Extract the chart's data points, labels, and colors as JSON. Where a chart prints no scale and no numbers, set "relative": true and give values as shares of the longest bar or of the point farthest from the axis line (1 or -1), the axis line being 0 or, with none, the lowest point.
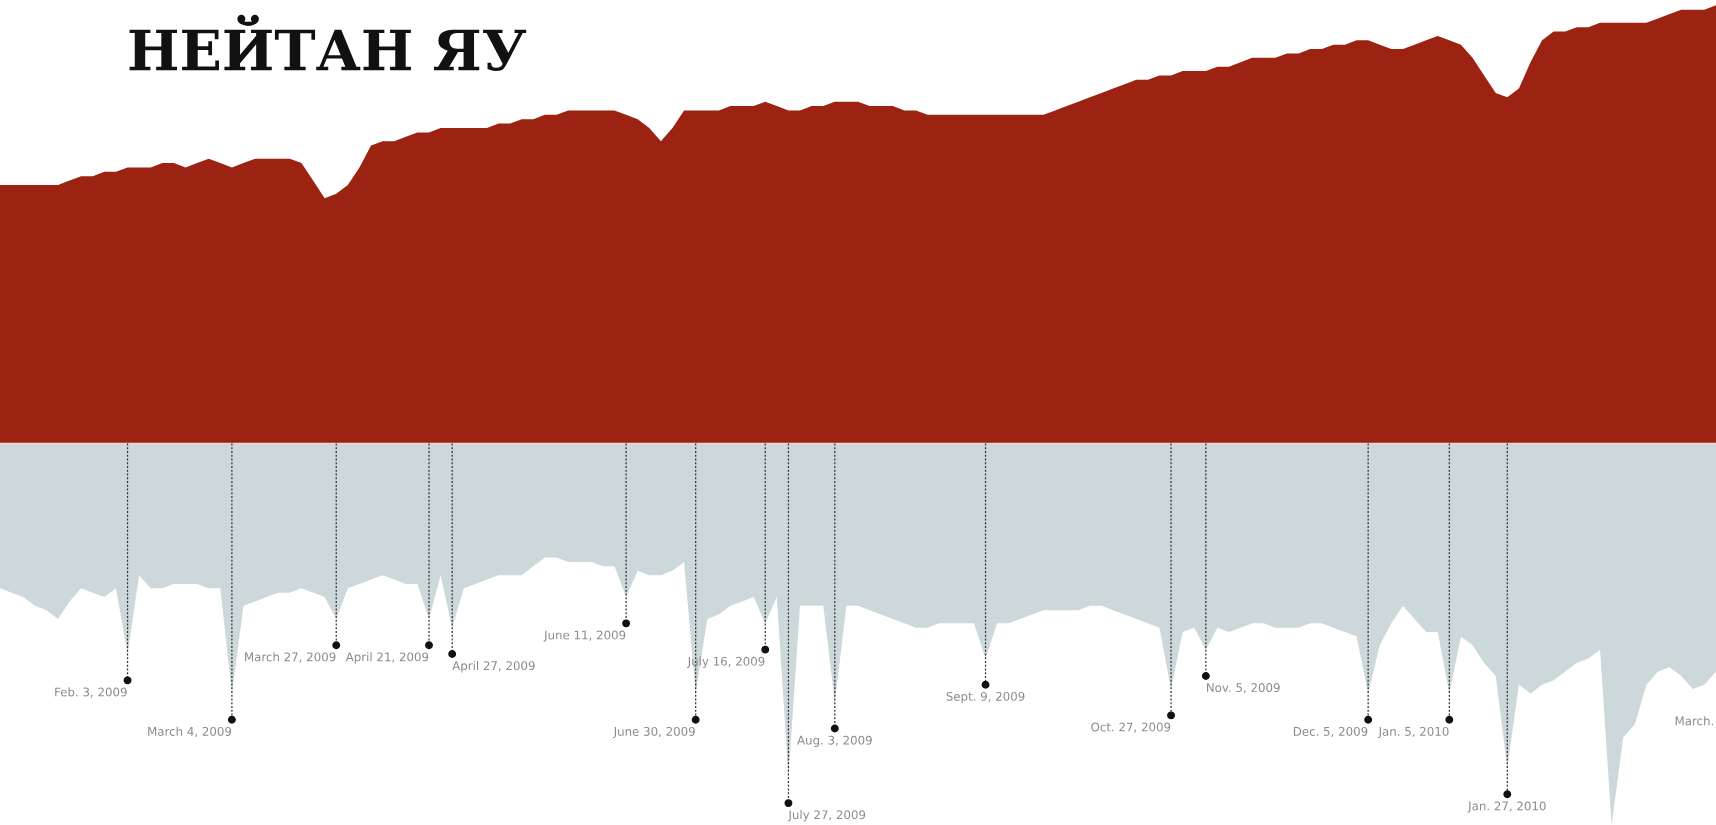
{
  "chart_data": {
    "type": "area",
    "title": "НЕЙТАН ЯУ",
    "relative": true,
    "categories": [
      null,
      null,
      null,
      null,
      null,
      null,
      null,
      null,
      null,
      null,
      null,
      null,
      null,
      null,
      null,
      null,
      null,
      null,
      null,
      null,
      null,
      null,
      null,
      null,
      null,
      null,
      null,
      null,
      null,
      null,
      null,
      null,
      null,
      null,
      null,
      null,
      null,
      null,
      null,
      null,
      null,
      null,
      null,
      null,
      null,
      null,
      null,
      null,
      null,
      null,
      null,
      null,
      null,
      null,
      null,
      null,
      null,
      null,
      null,
      null,
      null,
      null,
      null,
      null,
      null,
      null,
      null,
      null,
      null,
      null,
      null,
      null,
      null,
      null,
      null,
      null,
      null,
      null,
      null,
      null,
      null,
      null,
      null,
      null,
      null,
      null,
      null,
      null,
      null,
      null,
      null,
      null,
      null,
      null,
      null,
      null,
      null,
      null,
      null,
      null,
      null,
      null,
      null,
      null,
      null,
      null,
      null,
      null,
      null,
      null,
      null,
      null,
      null,
      null,
      null,
      null,
      null,
      null,
      null,
      null,
      null,
      null,
      null,
      null,
      null,
      null,
      null,
      null,
      null,
      null,
      null,
      null,
      null,
      null,
      null,
      null,
      null,
      null,
      null,
      null,
      null,
      null,
      null,
      null,
      null,
      null,
      null,
      null,
      null
    ],
    "series": [
      {
        "color": "#9c2212",
        "values": [
          0.59,
          0.59,
          0.59,
          0.59,
          0.59,
          0.59,
          0.6,
          0.61,
          0.61,
          0.62,
          0.62,
          0.63,
          0.63,
          0.63,
          0.64,
          0.64,
          0.63,
          0.64,
          0.65,
          0.64,
          0.63,
          0.64,
          0.65,
          0.65,
          0.65,
          0.65,
          0.64,
          0.6,
          0.56,
          0.57,
          0.59,
          0.63,
          0.68,
          0.69,
          0.69,
          0.7,
          0.71,
          0.71,
          0.72,
          0.72,
          0.72,
          0.72,
          0.72,
          0.73,
          0.73,
          0.74,
          0.74,
          0.75,
          0.75,
          0.76,
          0.76,
          0.76,
          0.76,
          0.76,
          0.75,
          0.74,
          0.72,
          0.69,
          0.72,
          0.76,
          0.76,
          0.76,
          0.76,
          0.77,
          0.77,
          0.77,
          0.78,
          0.77,
          0.76,
          0.76,
          0.77,
          0.77,
          0.78,
          0.78,
          0.78,
          0.77,
          0.77,
          0.77,
          0.76,
          0.76,
          0.75,
          0.75,
          0.75,
          0.75,
          0.75,
          0.75,
          0.75,
          0.75,
          0.75,
          0.75,
          0.75,
          0.76,
          0.77,
          0.78,
          0.79,
          0.8,
          0.81,
          0.82,
          0.83,
          0.83,
          0.84,
          0.84,
          0.85,
          0.85,
          0.85,
          0.86,
          0.86,
          0.87,
          0.88,
          0.88,
          0.88,
          0.89,
          0.89,
          0.9,
          0.9,
          0.91,
          0.91,
          0.92,
          0.92,
          0.91,
          0.9,
          0.9,
          0.91,
          0.92,
          0.93,
          0.92,
          0.91,
          0.88,
          0.84,
          0.8,
          0.79,
          0.81,
          0.87,
          0.92,
          0.94,
          0.94,
          0.95,
          0.95,
          0.96,
          0.96,
          0.96,
          0.96,
          0.96,
          0.97,
          0.98,
          0.99,
          0.99,
          0.99,
          1
        ]
      },
      {
        "color": "#cdd8da",
        "values": [
          -0.33,
          -0.34,
          -0.35,
          -0.37,
          -0.38,
          -0.4,
          -0.36,
          -0.33,
          -0.34,
          -0.35,
          -0.33,
          -0.48,
          -0.3,
          -0.33,
          -0.33,
          -0.32,
          -0.32,
          -0.32,
          -0.33,
          -0.33,
          -0.57,
          -0.37,
          -0.36,
          -0.35,
          -0.34,
          -0.34,
          -0.33,
          -0.34,
          -0.35,
          -0.4,
          -0.33,
          -0.32,
          -0.31,
          -0.3,
          -0.31,
          -0.32,
          -0.32,
          -0.4,
          -0.3,
          -0.42,
          -0.33,
          -0.32,
          -0.31,
          -0.3,
          -0.3,
          -0.3,
          -0.28,
          -0.26,
          -0.26,
          -0.27,
          -0.27,
          -0.27,
          -0.28,
          -0.28,
          -0.35,
          -0.29,
          -0.3,
          -0.3,
          -0.29,
          -0.27,
          -0.57,
          -0.4,
          -0.39,
          -0.37,
          -0.36,
          -0.35,
          -0.41,
          -0.35,
          -0.76,
          -0.37,
          -0.37,
          -0.37,
          -0.59,
          -0.37,
          -0.37,
          -0.38,
          -0.39,
          -0.4,
          -0.41,
          -0.42,
          -0.42,
          -0.41,
          -0.41,
          -0.41,
          -0.41,
          -0.49,
          -0.41,
          -0.41,
          -0.4,
          -0.39,
          -0.38,
          -0.38,
          -0.38,
          -0.38,
          -0.37,
          -0.37,
          -0.38,
          -0.39,
          -0.4,
          -0.41,
          -0.42,
          -0.56,
          -0.43,
          -0.42,
          -0.47,
          -0.42,
          -0.43,
          -0.42,
          -0.41,
          -0.41,
          -0.42,
          -0.42,
          -0.42,
          -0.41,
          -0.41,
          -0.42,
          -0.43,
          -0.44,
          -0.57,
          -0.46,
          -0.41,
          -0.37,
          -0.4,
          -0.43,
          -0.43,
          -0.57,
          -0.44,
          -0.46,
          -0.5,
          -0.53,
          -0.74,
          -0.55,
          -0.57,
          -0.55,
          -0.54,
          -0.52,
          -0.5,
          -0.49,
          -0.47,
          -0.87,
          -0.67,
          -0.64,
          -0.55,
          -0.52,
          -0.51,
          -0.53,
          -0.56,
          -0.55,
          -0.52
        ]
      }
    ],
    "annotations": [
      "Feb. 3, 2009",
      "March 4, 2009",
      "March 27, 2009",
      "April 21, 2009",
      "April 27, 2009",
      "June 11, 2009",
      "June 30, 2009",
      "July 16, 2009",
      "July 27, 2009",
      "Aug. 3, 2009",
      "Sept. 9, 2009",
      "Oct. 27, 2009",
      "Nov. 5, 2009",
      "Dec. 5, 2009",
      "Jan. 5, 2010",
      "Jan. 27, 2010",
      "March."
    ]
  }
}
